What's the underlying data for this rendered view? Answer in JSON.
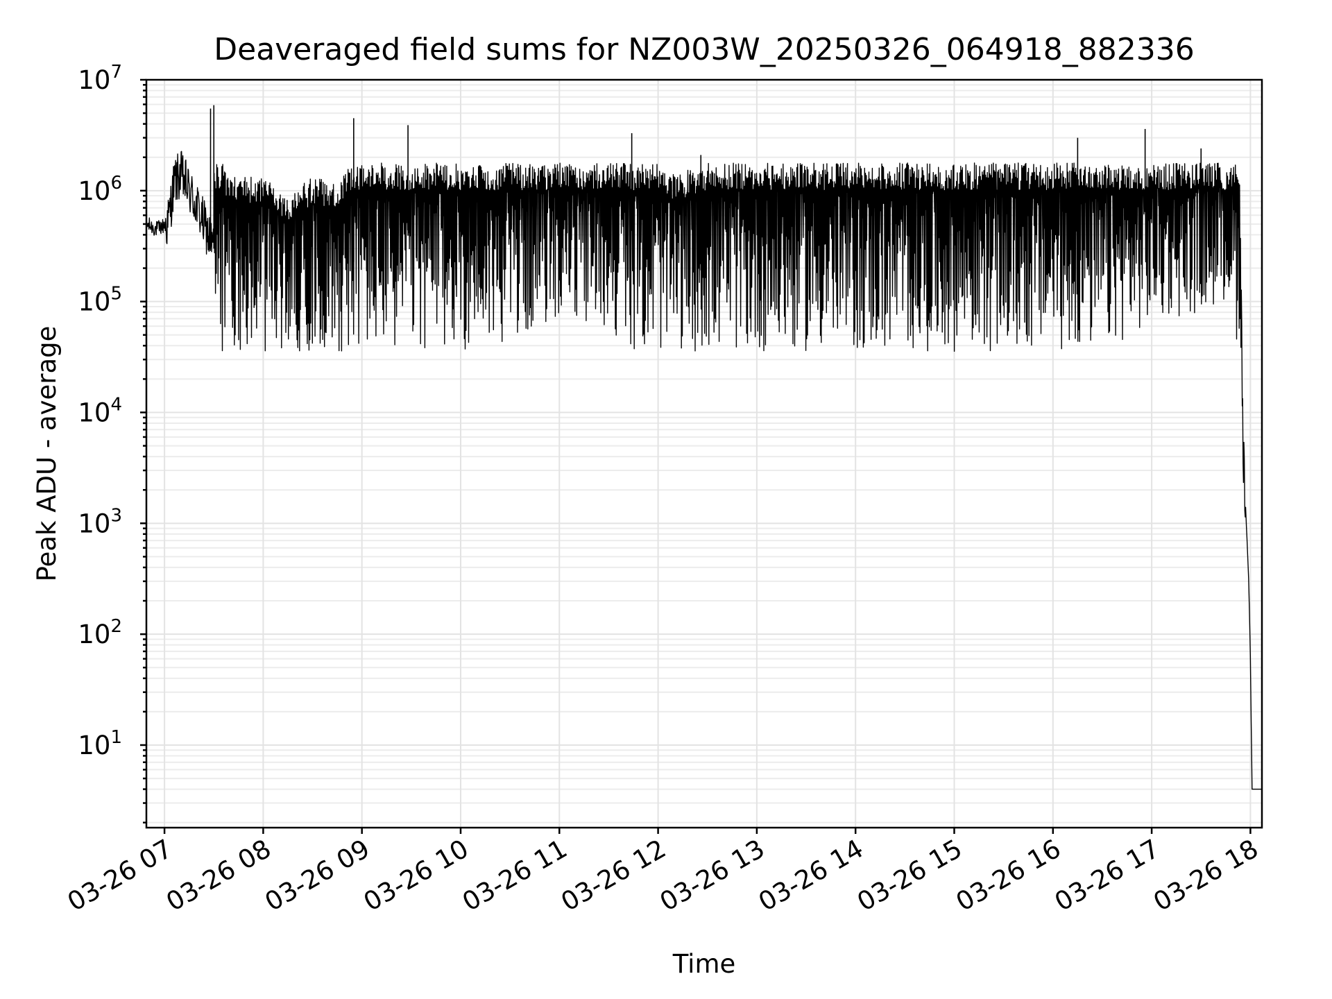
{
  "chart_data": {
    "type": "line",
    "title": "Deaveraged field sums for NZ003W_20250326_064918_882336",
    "xlabel": "Time",
    "ylabel": "Peak ADU - average",
    "yscale": "log",
    "ylim": [
      1.8,
      10000000
    ],
    "xlim": [
      "03-26 06:49",
      "03-26 18:07"
    ],
    "grid": "major and minor",
    "x_tick_labels": [
      "03-26 07",
      "03-26 08",
      "03-26 09",
      "03-26 10",
      "03-26 11",
      "03-26 12",
      "03-26 13",
      "03-26 14",
      "03-26 15",
      "03-26 16",
      "03-26 17",
      "03-26 18"
    ],
    "y_tick_labels": [
      {
        "base": "10",
        "exp": "1"
      },
      {
        "base": "10",
        "exp": "2"
      },
      {
        "base": "10",
        "exp": "3"
      },
      {
        "base": "10",
        "exp": "4"
      },
      {
        "base": "10",
        "exp": "5"
      },
      {
        "base": "10",
        "exp": "6"
      },
      {
        "base": "10",
        "exp": "7"
      }
    ],
    "series": [
      {
        "color": "#000000",
        "description_points": {
          "x": [
            "03-26 06:49",
            "03-26 06:55",
            "03-26 07:02",
            "03-26 07:06",
            "03-26 07:10",
            "03-26 07:15",
            "03-26 07:20",
            "03-26 07:30",
            "03-26 07:40",
            "03-26 07:50",
            "03-26 08:00",
            "03-26 08:15",
            "03-26 08:30",
            "03-26 08:45",
            "03-26 09:00",
            "03-26 09:30",
            "03-26 10:00",
            "03-26 10:30",
            "03-26 11:00",
            "03-26 11:30",
            "03-26 12:00",
            "03-26 12:05",
            "03-26 12:30",
            "03-26 13:00",
            "03-26 13:30",
            "03-26 14:00",
            "03-26 14:30",
            "03-26 15:00",
            "03-26 15:30",
            "03-26 16:00",
            "03-26 16:30",
            "03-26 17:00",
            "03-26 17:30",
            "03-26 17:45",
            "03-26 17:50",
            "03-26 17:53",
            "03-26 17:55",
            "03-26 17:57",
            "03-26 17:59",
            "03-26 18:00",
            "03-26 18:01",
            "03-26 18:07"
          ],
          "y": [
            500000,
            450000,
            500000,
            1200000,
            1400000,
            1000000,
            700000,
            300000,
            150000,
            150000,
            150000,
            100000,
            150000,
            130000,
            300000,
            400000,
            400000,
            500000,
            800000,
            600000,
            300000,
            150000,
            200000,
            300000,
            300000,
            300000,
            300000,
            300000,
            300000,
            300000,
            400000,
            700000,
            900000,
            1100000,
            900000,
            300000,
            10000,
            1500,
            300,
            60,
            4,
            4
          ]
        },
        "spikes": [
          {
            "x": "03-26 07:28",
            "y": 5500000
          },
          {
            "x": "03-26 07:30",
            "y": 5900000
          },
          {
            "x": "03-26 08:55",
            "y": 4500000
          },
          {
            "x": "03-26 09:28",
            "y": 3900000
          },
          {
            "x": "03-26 11:44",
            "y": 3300000
          },
          {
            "x": "03-26 12:26",
            "y": 2100000
          },
          {
            "x": "03-26 16:15",
            "y": 3000000
          },
          {
            "x": "03-26 16:56",
            "y": 3600000
          },
          {
            "x": "03-26 17:30",
            "y": 2400000
          }
        ],
        "envelope": {
          "upper": "about 1.2e6 to 1.8e6 between 03-26 08:30 and 03-26 17:50",
          "lower": "about 3.5e4 to 6e4 between 03-26 07:30 and 03-26 17:00"
        }
      }
    ]
  }
}
